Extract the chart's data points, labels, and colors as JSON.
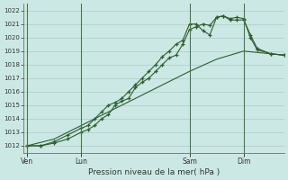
{
  "background_color": "#cce8e4",
  "grid_color": "#b0d0cc",
  "line_color": "#2d5e2d",
  "xlabel": "Pression niveau de la mer( hPa )",
  "ylim": [
    1011.5,
    1022.5
  ],
  "yticks": [
    1012,
    1013,
    1014,
    1015,
    1016,
    1017,
    1018,
    1019,
    1020,
    1021,
    1022
  ],
  "day_labels": [
    "Ven",
    "Lun",
    "Sam",
    "Dim"
  ],
  "vline_positions": [
    0,
    8,
    24,
    32
  ],
  "xlim": [
    -0.5,
    38
  ],
  "line1_x": [
    0,
    2,
    4,
    6,
    8,
    9,
    10,
    11,
    12,
    13,
    14,
    15,
    16,
    17,
    18,
    19,
    20,
    21,
    22,
    23,
    24,
    25,
    26,
    27,
    28,
    29,
    30,
    31,
    32,
    33,
    34,
    36,
    38
  ],
  "line1_y": [
    1012.0,
    1012.0,
    1012.2,
    1012.5,
    1013.0,
    1013.2,
    1013.5,
    1014.0,
    1014.3,
    1015.0,
    1015.3,
    1015.5,
    1016.3,
    1016.7,
    1017.0,
    1017.5,
    1018.0,
    1018.5,
    1018.7,
    1019.5,
    1020.6,
    1020.8,
    1021.0,
    1020.9,
    1021.5,
    1021.6,
    1021.3,
    1021.3,
    1021.3,
    1020.2,
    1019.2,
    1018.8,
    1018.7
  ],
  "line2_x": [
    0,
    2,
    4,
    6,
    8,
    9,
    10,
    11,
    12,
    13,
    14,
    15,
    16,
    17,
    18,
    19,
    20,
    21,
    22,
    23,
    24,
    25,
    26,
    27,
    28,
    29,
    30,
    31,
    32,
    33,
    34,
    36,
    38
  ],
  "line2_y": [
    1012.0,
    1012.0,
    1012.3,
    1012.8,
    1013.3,
    1013.5,
    1014.0,
    1014.5,
    1015.0,
    1015.2,
    1015.5,
    1016.0,
    1016.5,
    1017.0,
    1017.5,
    1018.0,
    1018.6,
    1019.0,
    1019.5,
    1019.8,
    1021.0,
    1021.0,
    1020.5,
    1020.2,
    1021.5,
    1021.6,
    1021.4,
    1021.5,
    1021.4,
    1020.0,
    1019.1,
    1018.8,
    1018.7
  ],
  "line3_x": [
    0,
    4,
    8,
    12,
    16,
    20,
    24,
    28,
    32,
    36,
    38
  ],
  "line3_y": [
    1012.0,
    1012.5,
    1013.5,
    1014.5,
    1015.5,
    1016.5,
    1017.5,
    1018.4,
    1019.0,
    1018.8,
    1018.7
  ]
}
